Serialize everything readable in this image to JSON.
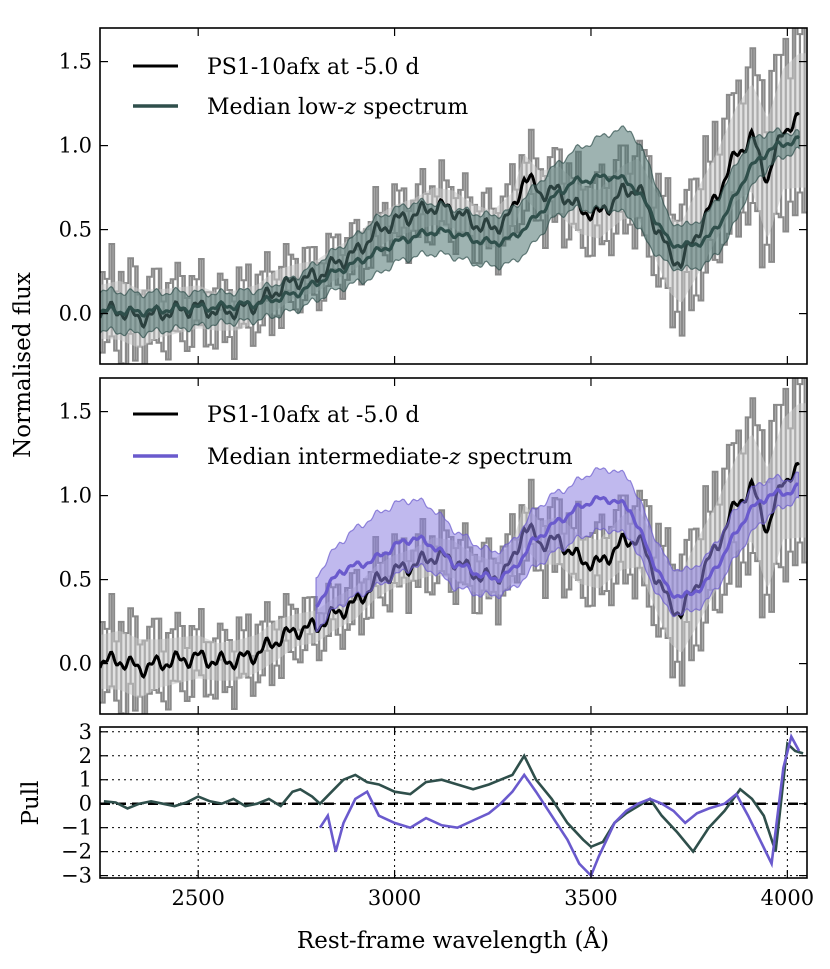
{
  "chart_data": [
    {
      "type": "line",
      "panel": "top",
      "ylabel": "Normalised flux",
      "xlim": [
        2250,
        4050
      ],
      "ylim": [
        -0.3,
        1.7
      ],
      "yticks": [
        {
          "v": 0.0,
          "label": "0.0"
        },
        {
          "v": 0.5,
          "label": "0.5"
        },
        {
          "v": 1.0,
          "label": "1.0"
        },
        {
          "v": 1.5,
          "label": "1.5"
        }
      ],
      "legend": {
        "position": "top-left",
        "entries": [
          {
            "label": "PS1-10afx at -5.0 d",
            "color": "#000000"
          },
          {
            "label": "Median low-",
            "italic": "z",
            "suffix": " spectrum",
            "color": "#2f4f4b"
          }
        ]
      },
      "series": [
        {
          "name": "PS1-10afx at -5.0 d",
          "color": "#000000",
          "error_color": "#8a8a8a",
          "x": [
            2250,
            2300,
            2350,
            2400,
            2450,
            2500,
            2550,
            2600,
            2650,
            2700,
            2750,
            2800,
            2850,
            2900,
            2950,
            3000,
            3050,
            3100,
            3150,
            3200,
            3250,
            3300,
            3330,
            3370,
            3420,
            3470,
            3520,
            3580,
            3620,
            3660,
            3700,
            3730,
            3770,
            3820,
            3870,
            3910,
            3950,
            3990,
            4030
          ],
          "y": [
            0.01,
            0.02,
            -0.03,
            0.0,
            0.02,
            0.04,
            0.01,
            0.02,
            0.06,
            0.14,
            0.2,
            0.22,
            0.3,
            0.36,
            0.48,
            0.55,
            0.59,
            0.64,
            0.62,
            0.54,
            0.5,
            0.6,
            0.82,
            0.72,
            0.73,
            0.62,
            0.59,
            0.72,
            0.75,
            0.55,
            0.35,
            0.3,
            0.48,
            0.7,
            0.95,
            1.05,
            0.8,
            1.1,
            1.15
          ],
          "yerr": [
            0.2,
            0.22,
            0.22,
            0.18,
            0.17,
            0.16,
            0.14,
            0.15,
            0.14,
            0.15,
            0.12,
            0.12,
            0.12,
            0.12,
            0.12,
            0.12,
            0.12,
            0.14,
            0.14,
            0.14,
            0.14,
            0.15,
            0.16,
            0.16,
            0.18,
            0.18,
            0.18,
            0.2,
            0.22,
            0.25,
            0.28,
            0.3,
            0.32,
            0.32,
            0.35,
            0.4,
            0.45,
            0.45,
            0.5
          ]
        },
        {
          "name": "Median low-z spectrum",
          "color": "#2f4f4b",
          "band_color": "#4f7471",
          "x": [
            2250,
            2350,
            2450,
            2550,
            2650,
            2750,
            2800,
            2850,
            2900,
            2950,
            3000,
            3050,
            3100,
            3150,
            3200,
            3250,
            3300,
            3350,
            3400,
            3450,
            3500,
            3550,
            3600,
            3650,
            3700,
            3750,
            3800,
            3850,
            3900,
            3950,
            4000,
            4030
          ],
          "y": [
            0.02,
            0.01,
            0.03,
            0.04,
            0.06,
            0.12,
            0.18,
            0.25,
            0.3,
            0.36,
            0.42,
            0.46,
            0.49,
            0.48,
            0.44,
            0.42,
            0.45,
            0.55,
            0.68,
            0.78,
            0.8,
            0.82,
            0.78,
            0.62,
            0.42,
            0.4,
            0.45,
            0.62,
            0.85,
            0.97,
            1.02,
            1.03
          ],
          "lo": [
            -0.1,
            -0.12,
            -0.09,
            -0.06,
            -0.04,
            0.02,
            0.08,
            0.14,
            0.18,
            0.22,
            0.3,
            0.34,
            0.36,
            0.34,
            0.3,
            0.28,
            0.3,
            0.4,
            0.56,
            0.62,
            0.62,
            0.62,
            0.58,
            0.4,
            0.28,
            0.26,
            0.3,
            0.45,
            0.72,
            0.87,
            0.95,
            0.97
          ],
          "hi": [
            0.14,
            0.12,
            0.13,
            0.12,
            0.14,
            0.22,
            0.3,
            0.38,
            0.46,
            0.56,
            0.62,
            0.66,
            0.66,
            0.63,
            0.6,
            0.58,
            0.62,
            0.74,
            0.86,
            0.96,
            1.02,
            1.08,
            1.1,
            0.88,
            0.55,
            0.52,
            0.6,
            0.8,
            1.02,
            1.08,
            1.08,
            1.07
          ]
        }
      ]
    },
    {
      "type": "line",
      "panel": "middle",
      "ylabel": "",
      "xlim": [
        2250,
        4050
      ],
      "ylim": [
        -0.3,
        1.7
      ],
      "yticks": [
        {
          "v": 0.0,
          "label": "0.0"
        },
        {
          "v": 0.5,
          "label": "0.5"
        },
        {
          "v": 1.0,
          "label": "1.0"
        },
        {
          "v": 1.5,
          "label": "1.5"
        }
      ],
      "legend": {
        "position": "top-left",
        "entries": [
          {
            "label": "PS1-10afx at -5.0 d",
            "color": "#000000"
          },
          {
            "label": "Median intermediate-",
            "italic": "z",
            "suffix": " spectrum",
            "color": "#6a5acd"
          }
        ]
      },
      "series": [
        {
          "name": "PS1-10afx at -5.0 d",
          "color": "#000000",
          "error_color": "#8a8a8a",
          "x": [
            2250,
            2300,
            2350,
            2400,
            2450,
            2500,
            2550,
            2600,
            2650,
            2700,
            2750,
            2800,
            2850,
            2900,
            2950,
            3000,
            3050,
            3100,
            3150,
            3200,
            3250,
            3300,
            3330,
            3370,
            3420,
            3470,
            3520,
            3580,
            3620,
            3660,
            3700,
            3730,
            3770,
            3820,
            3870,
            3910,
            3950,
            3990,
            4030
          ],
          "y": [
            0.01,
            0.02,
            -0.03,
            0.0,
            0.02,
            0.04,
            0.01,
            0.02,
            0.06,
            0.14,
            0.2,
            0.22,
            0.3,
            0.36,
            0.48,
            0.55,
            0.59,
            0.64,
            0.62,
            0.54,
            0.5,
            0.6,
            0.82,
            0.72,
            0.73,
            0.62,
            0.59,
            0.72,
            0.75,
            0.55,
            0.35,
            0.3,
            0.48,
            0.7,
            0.95,
            1.05,
            0.8,
            1.1,
            1.15
          ],
          "yerr": [
            0.2,
            0.22,
            0.22,
            0.18,
            0.17,
            0.16,
            0.14,
            0.15,
            0.14,
            0.15,
            0.12,
            0.12,
            0.12,
            0.12,
            0.12,
            0.12,
            0.12,
            0.14,
            0.14,
            0.14,
            0.14,
            0.15,
            0.16,
            0.16,
            0.18,
            0.18,
            0.18,
            0.2,
            0.22,
            0.25,
            0.28,
            0.3,
            0.32,
            0.32,
            0.35,
            0.4,
            0.45,
            0.45,
            0.5
          ]
        },
        {
          "name": "Median intermediate-z spectrum",
          "color": "#6a5acd",
          "band_color": "#8c7fe0",
          "x": [
            2800,
            2830,
            2860,
            2900,
            2950,
            3000,
            3050,
            3100,
            3150,
            3200,
            3250,
            3300,
            3350,
            3400,
            3450,
            3500,
            3550,
            3600,
            3650,
            3700,
            3750,
            3800,
            3850,
            3900,
            3950,
            4000,
            4030
          ],
          "y": [
            0.35,
            0.45,
            0.55,
            0.58,
            0.62,
            0.7,
            0.75,
            0.7,
            0.6,
            0.55,
            0.5,
            0.55,
            0.72,
            0.82,
            0.9,
            0.97,
            0.98,
            0.92,
            0.65,
            0.42,
            0.4,
            0.5,
            0.7,
            0.9,
            1.0,
            1.02,
            1.05
          ],
          "lo": [
            0.2,
            0.28,
            0.35,
            0.4,
            0.45,
            0.52,
            0.58,
            0.55,
            0.46,
            0.42,
            0.4,
            0.44,
            0.56,
            0.65,
            0.72,
            0.78,
            0.8,
            0.75,
            0.5,
            0.3,
            0.3,
            0.38,
            0.56,
            0.75,
            0.88,
            0.95,
            0.97
          ],
          "hi": [
            0.52,
            0.62,
            0.72,
            0.8,
            0.88,
            0.95,
            0.98,
            0.92,
            0.8,
            0.72,
            0.66,
            0.72,
            0.9,
            1.0,
            1.06,
            1.14,
            1.16,
            1.1,
            0.82,
            0.58,
            0.55,
            0.65,
            0.85,
            1.02,
            1.1,
            1.1,
            1.12
          ]
        }
      ]
    },
    {
      "type": "line",
      "panel": "bottom",
      "ylabel": "Pull",
      "xlabel": "Rest-frame wavelength (Å)",
      "xlim": [
        2250,
        4050
      ],
      "ylim": [
        -3.1,
        3.2
      ],
      "grid": true,
      "xticks": [
        {
          "v": 2500,
          "label": "2500"
        },
        {
          "v": 3000,
          "label": "3000"
        },
        {
          "v": 3500,
          "label": "3500"
        },
        {
          "v": 4000,
          "label": "4000"
        }
      ],
      "yticks": [
        {
          "v": -3,
          "label": "−3"
        },
        {
          "v": -2,
          "label": "−2"
        },
        {
          "v": -1,
          "label": "−1"
        },
        {
          "v": 0,
          "label": "0"
        },
        {
          "v": 1,
          "label": "1"
        },
        {
          "v": 2,
          "label": "2"
        },
        {
          "v": 3,
          "label": "3"
        }
      ],
      "reference_line": {
        "y": 0,
        "style": "dashed"
      },
      "series": [
        {
          "name": "low-z pull",
          "color": "#2f4f4b",
          "x": [
            2260,
            2290,
            2320,
            2350,
            2380,
            2410,
            2440,
            2470,
            2500,
            2530,
            2560,
            2590,
            2620,
            2650,
            2680,
            2710,
            2740,
            2760,
            2790,
            2810,
            2840,
            2870,
            2900,
            2930,
            2960,
            3000,
            3040,
            3080,
            3120,
            3160,
            3200,
            3240,
            3270,
            3300,
            3330,
            3360,
            3400,
            3440,
            3480,
            3500,
            3530,
            3560,
            3590,
            3620,
            3650,
            3680,
            3720,
            3760,
            3800,
            3840,
            3880,
            3910,
            3940,
            3970,
            4000,
            4020,
            4040
          ],
          "y": [
            0.1,
            0.05,
            -0.2,
            0.0,
            0.1,
            0.0,
            -0.1,
            0.05,
            0.3,
            0.1,
            0.0,
            0.2,
            -0.1,
            0.0,
            0.2,
            -0.1,
            0.5,
            0.6,
            0.3,
            0.0,
            0.5,
            1.0,
            1.2,
            0.9,
            0.8,
            0.5,
            0.4,
            0.9,
            1.0,
            0.8,
            0.6,
            0.8,
            1.0,
            1.2,
            2.0,
            1.0,
            0.2,
            -0.8,
            -1.5,
            -1.8,
            -1.6,
            -0.8,
            -0.4,
            -0.1,
            0.2,
            -0.5,
            -1.2,
            -2.0,
            -1.0,
            -0.3,
            0.6,
            0.2,
            -0.5,
            -2.0,
            2.5,
            2.2,
            2.1
          ]
        },
        {
          "name": "intermediate-z pull",
          "color": "#6a5acd",
          "x": [
            2810,
            2830,
            2850,
            2870,
            2900,
            2930,
            2960,
            3000,
            3040,
            3080,
            3120,
            3160,
            3200,
            3240,
            3270,
            3300,
            3330,
            3360,
            3400,
            3440,
            3470,
            3500,
            3520,
            3540,
            3560,
            3590,
            3620,
            3650,
            3680,
            3710,
            3740,
            3770,
            3800,
            3840,
            3870,
            3900,
            3930,
            3960,
            3990,
            4010,
            4030
          ],
          "y": [
            -1.0,
            -0.5,
            -2.0,
            -0.8,
            0.2,
            0.5,
            -0.5,
            -0.8,
            -1.0,
            -0.6,
            -0.9,
            -1.0,
            -0.7,
            -0.4,
            0.0,
            0.5,
            1.2,
            0.5,
            -0.5,
            -1.5,
            -2.5,
            -3.0,
            -2.2,
            -1.5,
            -0.8,
            -0.3,
            0.0,
            0.2,
            0.0,
            -0.3,
            -0.8,
            -0.4,
            -0.2,
            0.0,
            0.4,
            -0.5,
            -1.5,
            -2.5,
            1.5,
            2.8,
            2.2
          ]
        }
      ]
    }
  ]
}
